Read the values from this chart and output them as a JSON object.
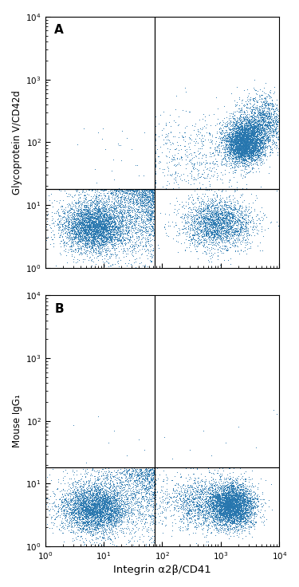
{
  "fig_width": 3.75,
  "fig_height": 7.36,
  "dpi": 100,
  "bg_color": "#ffffff",
  "dot_color": "#2776ae",
  "dot_size": 0.5,
  "dot_alpha": 0.85,
  "xlim": [
    1,
    10000
  ],
  "ylim": [
    1,
    10000
  ],
  "xlabel": "Integrin α2β/CD41",
  "ylabel_A": "Glycoprotein V/CD42d",
  "ylabel_B": "Mouse IgG₁",
  "label_A": "A",
  "label_B": "B",
  "vline_x": 75,
  "hline_y_A": 18,
  "hline_y_B": 18,
  "seed_A": 42,
  "seed_B": 99
}
